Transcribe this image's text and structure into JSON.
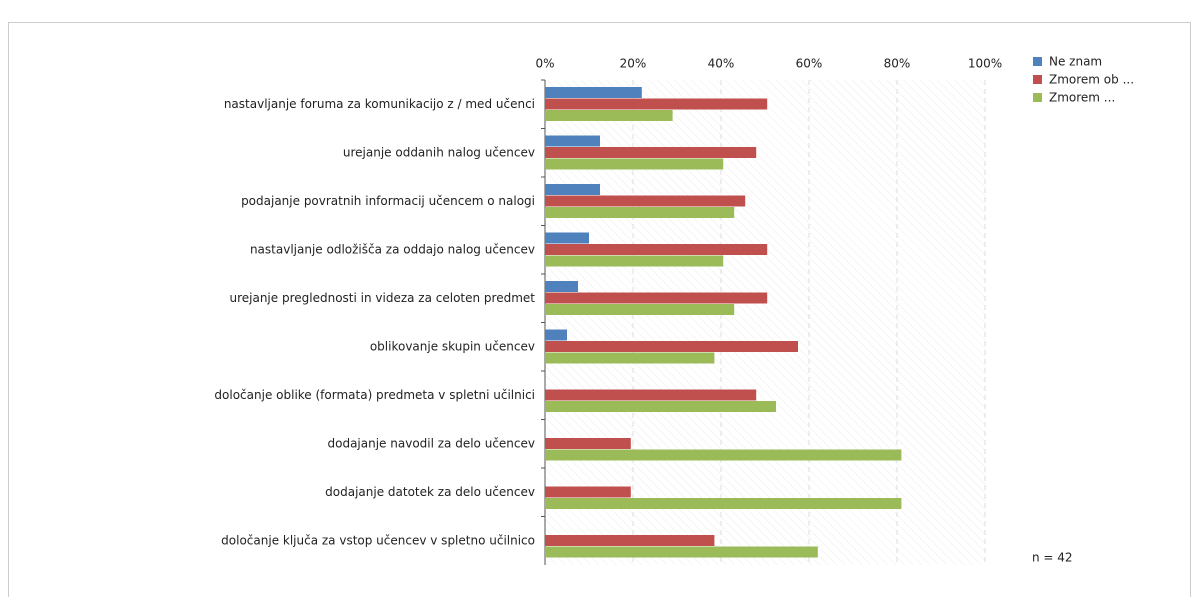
{
  "chart_data": {
    "type": "hbar",
    "categories": [
      "nastavljanje foruma za komunikacijo z / med učenci",
      "urejanje oddanih nalog učencev",
      "podajanje povratnih informacij učencem o nalogi",
      "nastavljanje odložišča za oddajo nalog učencev",
      "urejanje preglednosti in videza za celoten predmet",
      "oblikovanje skupin učencev",
      "določanje oblike (formata) predmeta v spletni učilnici",
      "dodajanje navodil za delo učencev",
      "dodajanje datotek za delo učencev",
      "določanje ključa za vstop učencev v spletno učilnico"
    ],
    "series": [
      {
        "name": "Ne znam",
        "color": "#4f81bd",
        "values": [
          22,
          12.5,
          12.5,
          10,
          7.5,
          5,
          0,
          0,
          0,
          0
        ]
      },
      {
        "name": "Zmorem ob ...",
        "color": "#c0504d",
        "values": [
          50.5,
          48,
          45.5,
          50.5,
          50.5,
          57.5,
          48,
          19.5,
          19.5,
          38.5
        ]
      },
      {
        "name": "Zmorem ...",
        "color": "#9bbb59",
        "values": [
          29,
          40.5,
          43,
          40.5,
          43,
          38.5,
          52.5,
          81,
          81,
          62
        ]
      }
    ],
    "xlim": [
      0,
      100
    ],
    "xticks": [
      {
        "value": 0,
        "label": "0%"
      },
      {
        "value": 20,
        "label": "20%"
      },
      {
        "value": 40,
        "label": "40%"
      },
      {
        "value": 60,
        "label": "60%"
      },
      {
        "value": 80,
        "label": "80%"
      },
      {
        "value": 100,
        "label": "100%"
      }
    ],
    "grid": true,
    "legend": "right",
    "annotation": "n = 42"
  }
}
